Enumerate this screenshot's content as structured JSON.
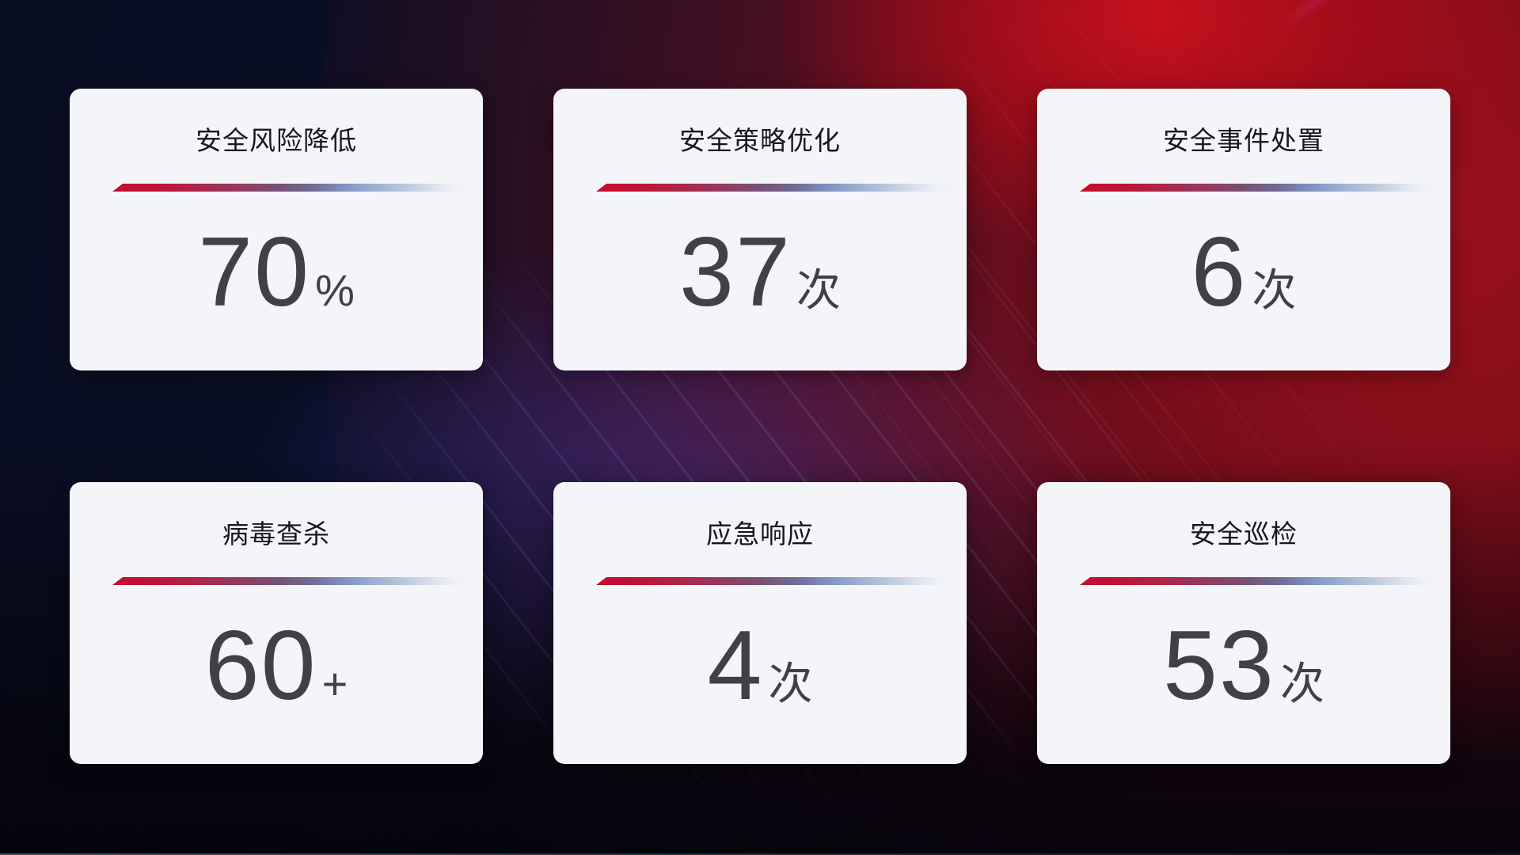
{
  "cards": [
    {
      "title": "安全风险降低",
      "value": "70",
      "unit": "%"
    },
    {
      "title": "安全策略优化",
      "value": "37",
      "unit": "次"
    },
    {
      "title": "安全事件处置",
      "value": "6",
      "unit": "次"
    },
    {
      "title": "病毒查杀",
      "value": "60",
      "unit": "+"
    },
    {
      "title": "应急响应",
      "value": "4",
      "unit": "次"
    },
    {
      "title": "安全巡检",
      "value": "53",
      "unit": "次"
    }
  ],
  "colors": {
    "card_background": "#f4f5f9",
    "title_text": "#17171d",
    "value_text": "#404046",
    "divider_red": "#c50e2f",
    "divider_blue": "#9fb2d3",
    "background_navy": "#0a0e23",
    "background_red": "#99101c",
    "background_blue_glow": "#1b2f8c"
  }
}
